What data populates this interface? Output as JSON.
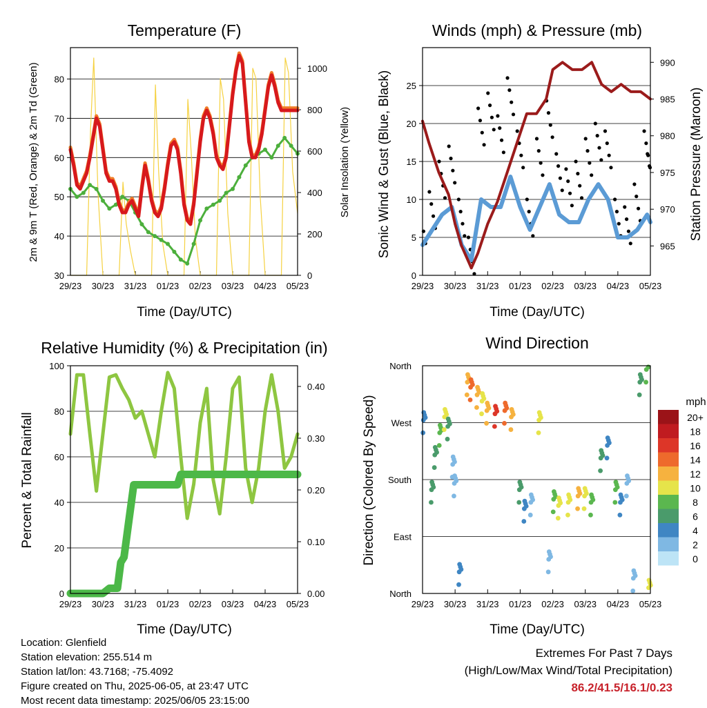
{
  "panels": {
    "temperature": {
      "title": "Temperature (F)",
      "ylabel_left": "2m & 9m T (Red, Orange) & 2m Td (Green)",
      "ylabel_right": "Solar Insolation (Yellow)",
      "xlabel": "Time (Day/UTC)"
    },
    "winds": {
      "title": "Winds (mph) & Pressure (mb)",
      "ylabel_left": "Sonic Wind & Gust (Blue, Black)",
      "ylabel_right": "Station Pressure (Maroon)",
      "xlabel": "Time (Day/UTC)"
    },
    "humidity": {
      "title": "Relative Humidity (%) & Precipitation (in)",
      "ylabel_left": "Percent & Total Rainfall",
      "xlabel": "Time (Day/UTC)"
    },
    "direction": {
      "title": "Wind Direction",
      "ylabel_left": "Direction (Colored By Speed)",
      "xlabel": "Time (Day/UTC)",
      "colorbar_title": "mph"
    }
  },
  "footer": {
    "location": "Location: Glenfield",
    "elevation": "Station elevation: 255.514 m",
    "latlon": "Station lat/lon: 43.7168; -75.4092",
    "created": "Figure created on Thu, 2025-06-05, at 23:47 UTC",
    "recent": "Most recent data timestamp: 2025/06/05 23:15:00",
    "extremes_title": "Extremes For Past 7 Days",
    "extremes_sub": "(High/Low/Max Wind/Total Precipitation)",
    "extremes_values": "86.2/41.5/16.1/0.23"
  },
  "colors": {
    "temp_2m": "#d7191c",
    "temp_9m": "#f07d2a",
    "dewpoint": "#4caf3c",
    "insolation": "#f5d140",
    "wind": "#5b9bd5",
    "gust": "#000000",
    "pressure": "#9b1b1b",
    "rh": "#8ec641",
    "precip": "#4cb848"
  },
  "chart_data": [
    {
      "id": "temperature",
      "type": "line",
      "x_ticks": [
        "29/23",
        "30/23",
        "31/23",
        "01/23",
        "02/23",
        "03/23",
        "04/23",
        "05/23"
      ],
      "xlim": [
        0,
        7
      ],
      "ylim": [
        30,
        88
      ],
      "y_ticks": [
        30,
        40,
        50,
        60,
        70,
        80
      ],
      "y2lim": [
        0,
        1100
      ],
      "y2_ticks": [
        0,
        200,
        400,
        600,
        800,
        1000
      ],
      "series": [
        {
          "key": "temp_2m",
          "axis": "left",
          "x": [
            0,
            0.1,
            0.2,
            0.3,
            0.4,
            0.5,
            0.6,
            0.7,
            0.8,
            0.9,
            1.0,
            1.1,
            1.2,
            1.3,
            1.4,
            1.5,
            1.6,
            1.7,
            1.8,
            1.9,
            2.0,
            2.1,
            2.2,
            2.3,
            2.4,
            2.5,
            2.6,
            2.7,
            2.8,
            2.9,
            3.0,
            3.1,
            3.2,
            3.3,
            3.4,
            3.5,
            3.6,
            3.7,
            3.8,
            3.9,
            4.0,
            4.1,
            4.2,
            4.3,
            4.4,
            4.5,
            4.6,
            4.7,
            4.8,
            4.9,
            5.0,
            5.1,
            5.2,
            5.3,
            5.4,
            5.5,
            5.6,
            5.7,
            5.8,
            5.9,
            6.0,
            6.1,
            6.2,
            6.3,
            6.4,
            6.5,
            6.6,
            6.7,
            6.8,
            6.9,
            7.0
          ],
          "y": [
            62,
            58,
            53,
            52,
            54,
            56,
            60,
            65,
            70,
            68,
            62,
            56,
            54,
            54,
            52,
            48,
            46,
            46,
            48,
            49,
            47,
            45,
            52,
            58,
            54,
            49,
            46,
            45,
            47,
            52,
            58,
            63,
            64,
            62,
            56,
            48,
            44,
            43,
            48,
            56,
            64,
            70,
            72,
            70,
            66,
            60,
            58,
            57,
            60,
            68,
            76,
            82,
            86,
            84,
            74,
            64,
            60,
            60,
            62,
            66,
            72,
            78,
            81,
            78,
            74,
            72,
            72,
            72,
            72,
            72,
            72
          ]
        },
        {
          "key": "dewpoint",
          "axis": "left",
          "x": [
            0,
            0.2,
            0.4,
            0.6,
            0.8,
            1.0,
            1.2,
            1.4,
            1.6,
            1.8,
            2.0,
            2.2,
            2.4,
            2.6,
            2.8,
            3.0,
            3.2,
            3.4,
            3.6,
            3.8,
            4.0,
            4.2,
            4.4,
            4.6,
            4.8,
            5.0,
            5.2,
            5.4,
            5.6,
            5.8,
            6.0,
            6.2,
            6.4,
            6.6,
            6.8,
            7.0
          ],
          "y": [
            52,
            50,
            51,
            53,
            52,
            49,
            47,
            48,
            50,
            49,
            46,
            43,
            41,
            40,
            39,
            38,
            36,
            34,
            33,
            38,
            44,
            47,
            48,
            49,
            51,
            52,
            55,
            58,
            60,
            61,
            62,
            60,
            63,
            65,
            63,
            61
          ]
        },
        {
          "key": "insolation",
          "axis": "right",
          "x": [
            0,
            0.5,
            0.62,
            0.72,
            0.85,
            1.0,
            1.3,
            1.5,
            1.62,
            1.72,
            1.85,
            2.0,
            2.3,
            2.5,
            2.62,
            2.72,
            2.85,
            3.0,
            3.3,
            3.5,
            3.62,
            3.72,
            3.85,
            4.0,
            4.3,
            4.5,
            4.62,
            4.72,
            4.85,
            5.0,
            5.3,
            5.5,
            5.62,
            5.72,
            5.85,
            6.0,
            6.3,
            6.5,
            6.62,
            6.72,
            6.85,
            7.0
          ],
          "y": [
            0,
            0,
            700,
            1050,
            400,
            0,
            0,
            0,
            450,
            250,
            120,
            0,
            0,
            0,
            920,
            500,
            150,
            0,
            0,
            0,
            850,
            600,
            180,
            0,
            0,
            0,
            950,
            850,
            300,
            0,
            0,
            0,
            1000,
            950,
            380,
            0,
            0,
            0,
            1050,
            980,
            500,
            300
          ]
        }
      ]
    },
    {
      "id": "winds",
      "type": "line",
      "x_ticks": [
        "29/23",
        "30/23",
        "31/23",
        "01/23",
        "02/23",
        "03/23",
        "04/23",
        "05/23"
      ],
      "xlim": [
        0,
        7
      ],
      "ylim": [
        0,
        30
      ],
      "y_ticks": [
        0,
        5,
        10,
        15,
        20,
        25
      ],
      "y2lim": [
        961,
        992
      ],
      "y2_ticks": [
        965,
        970,
        975,
        980,
        985,
        990
      ],
      "series": [
        {
          "key": "wind",
          "axis": "left",
          "x": [
            0,
            0.3,
            0.6,
            0.9,
            1.2,
            1.5,
            1.8,
            2.1,
            2.4,
            2.7,
            3.0,
            3.3,
            3.6,
            3.9,
            4.2,
            4.5,
            4.8,
            5.1,
            5.4,
            5.7,
            6.0,
            6.3,
            6.6,
            6.9,
            7.0
          ],
          "y": [
            4,
            6,
            8,
            9,
            4,
            2,
            10,
            9,
            9,
            13,
            9,
            6,
            9,
            12,
            8,
            7,
            7,
            10,
            12,
            10,
            5,
            5,
            6,
            8,
            7
          ]
        },
        {
          "key": "gust",
          "axis": "left",
          "x": [
            0,
            0.3,
            0.6,
            0.9,
            1.2,
            1.5,
            1.8,
            2.1,
            2.4,
            2.7,
            3.0,
            3.3,
            3.6,
            3.9,
            4.2,
            4.5,
            4.8,
            5.1,
            5.4,
            5.7,
            6.0,
            6.3,
            6.6,
            6.9,
            7.0
          ],
          "y": [
            9,
            11,
            15,
            17,
            10,
            5,
            22,
            24,
            21,
            26,
            19,
            10,
            18,
            23,
            16,
            14,
            15,
            18,
            20,
            19,
            10,
            9,
            12,
            19,
            16
          ]
        },
        {
          "key": "pressure",
          "axis": "right",
          "x": [
            0,
            0.2,
            0.5,
            0.8,
            1.0,
            1.2,
            1.5,
            1.7,
            2.0,
            2.3,
            2.6,
            2.9,
            3.2,
            3.5,
            3.8,
            4.0,
            4.3,
            4.6,
            4.9,
            5.2,
            5.5,
            5.8,
            6.1,
            6.4,
            6.7,
            7.0
          ],
          "y": [
            982,
            979,
            975,
            972,
            968,
            965,
            962,
            964,
            968,
            971,
            975,
            979,
            983,
            983,
            985,
            989,
            990,
            989,
            989,
            990,
            987,
            986,
            987,
            986,
            986,
            985
          ]
        }
      ]
    },
    {
      "id": "humidity",
      "type": "line",
      "x_ticks": [
        "29/23",
        "30/23",
        "31/23",
        "01/23",
        "02/23",
        "03/23",
        "04/23",
        "05/23"
      ],
      "xlim": [
        0,
        7
      ],
      "ylim": [
        0,
        100
      ],
      "y_ticks": [
        0,
        20,
        40,
        60,
        80,
        100
      ],
      "y2lim": [
        0,
        0.44
      ],
      "y2_ticks": [
        0.0,
        0.1,
        0.2,
        0.3,
        0.4
      ],
      "series": [
        {
          "key": "rh",
          "axis": "left",
          "x": [
            0,
            0.2,
            0.4,
            0.6,
            0.8,
            1.0,
            1.2,
            1.4,
            1.6,
            1.8,
            2.0,
            2.2,
            2.4,
            2.6,
            2.8,
            3.0,
            3.2,
            3.4,
            3.6,
            3.8,
            4.0,
            4.2,
            4.4,
            4.6,
            4.8,
            5.0,
            5.2,
            5.4,
            5.6,
            5.8,
            6.0,
            6.2,
            6.4,
            6.6,
            6.8,
            7.0
          ],
          "y": [
            70,
            96,
            96,
            70,
            45,
            70,
            95,
            96,
            90,
            85,
            77,
            80,
            70,
            60,
            80,
            97,
            90,
            60,
            33,
            48,
            75,
            90,
            50,
            35,
            60,
            90,
            95,
            55,
            40,
            55,
            80,
            96,
            80,
            55,
            60,
            70
          ]
        },
        {
          "key": "precip",
          "axis": "right",
          "x": [
            0,
            1.0,
            1.2,
            1.45,
            1.55,
            1.65,
            1.8,
            1.95,
            2.5,
            3.3,
            3.4,
            7.0
          ],
          "y": [
            0.0,
            0.0,
            0.01,
            0.01,
            0.06,
            0.07,
            0.14,
            0.21,
            0.21,
            0.21,
            0.23,
            0.23
          ]
        }
      ]
    },
    {
      "id": "direction",
      "type": "scatter",
      "x_ticks": [
        "29/23",
        "30/23",
        "31/23",
        "01/23",
        "02/23",
        "03/23",
        "04/23",
        "05/23"
      ],
      "xlim": [
        0,
        7
      ],
      "y_ticks": [
        "North",
        "East",
        "South",
        "West",
        "North"
      ],
      "ylim": [
        0,
        360
      ],
      "colorbar": {
        "labels": [
          "0",
          "2",
          "4",
          "6",
          "8",
          "10",
          "12",
          "14",
          "16",
          "18",
          "20+"
        ],
        "colors": [
          "#bde4f6",
          "#7fb8e3",
          "#3f86c3",
          "#4a9b6b",
          "#5bb74f",
          "#e6e44a",
          "#f6b23f",
          "#ee6a2c",
          "#dd3628",
          "#c01b20",
          "#9b1318"
        ]
      },
      "x": [
        0.05,
        0.3,
        0.4,
        0.55,
        0.7,
        0.8,
        0.95,
        1.0,
        1.15,
        1.4,
        1.5,
        1.7,
        1.85,
        2.0,
        2.25,
        2.55,
        2.75,
        3.0,
        3.15,
        3.35,
        3.6,
        3.9,
        4.05,
        4.2,
        4.5,
        4.8,
        5.0,
        5.2,
        5.5,
        5.7,
        5.95,
        6.1,
        6.3,
        6.5,
        6.7,
        6.9,
        6.97
      ],
      "y": [
        270,
        160,
        215,
        250,
        275,
        260,
        200,
        170,
        30,
        330,
        322,
        310,
        300,
        285,
        280,
        285,
        275,
        160,
        130,
        140,
        270,
        50,
        145,
        135,
        140,
        150,
        150,
        140,
        210,
        230,
        160,
        140,
        170,
        20,
        330,
        350,
        5
      ],
      "speed": [
        4,
        6,
        6,
        8,
        10,
        6,
        2,
        2,
        4,
        12,
        14,
        12,
        10,
        12,
        16,
        14,
        12,
        6,
        4,
        2,
        10,
        2,
        8,
        10,
        10,
        12,
        10,
        8,
        6,
        4,
        8,
        4,
        2,
        2,
        6,
        8,
        10
      ]
    }
  ]
}
